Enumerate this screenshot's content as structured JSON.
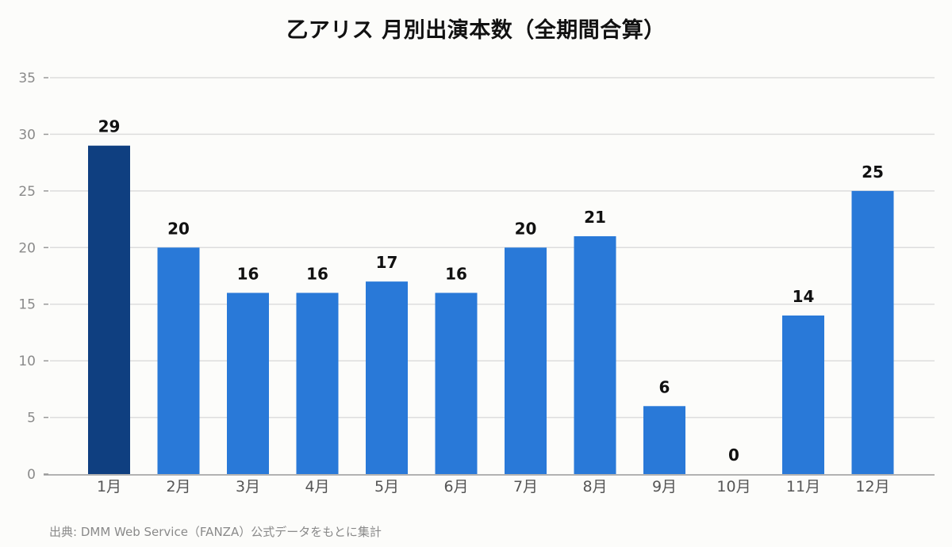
{
  "chart_data": {
    "type": "bar",
    "title": "乙アリス 月別出演本数（全期間合算）",
    "xlabel": "",
    "ylabel": "",
    "categories": [
      "1月",
      "2月",
      "3月",
      "4月",
      "5月",
      "6月",
      "7月",
      "8月",
      "9月",
      "10月",
      "11月",
      "12月"
    ],
    "values": [
      29,
      20,
      16,
      16,
      17,
      16,
      20,
      21,
      6,
      0,
      14,
      25
    ],
    "ylim": [
      0,
      35
    ],
    "yticks": [
      0,
      5,
      10,
      15,
      20,
      25,
      30,
      35
    ],
    "grid": true,
    "data_labels": true,
    "colors": {
      "bar": "#2979d8",
      "highlight": "#0f3f80",
      "grid": "#dddddd",
      "axis": "#999999"
    },
    "highlight_index": 0
  },
  "source": "出典: DMM Web Service（FANZA）公式データをもとに集計"
}
